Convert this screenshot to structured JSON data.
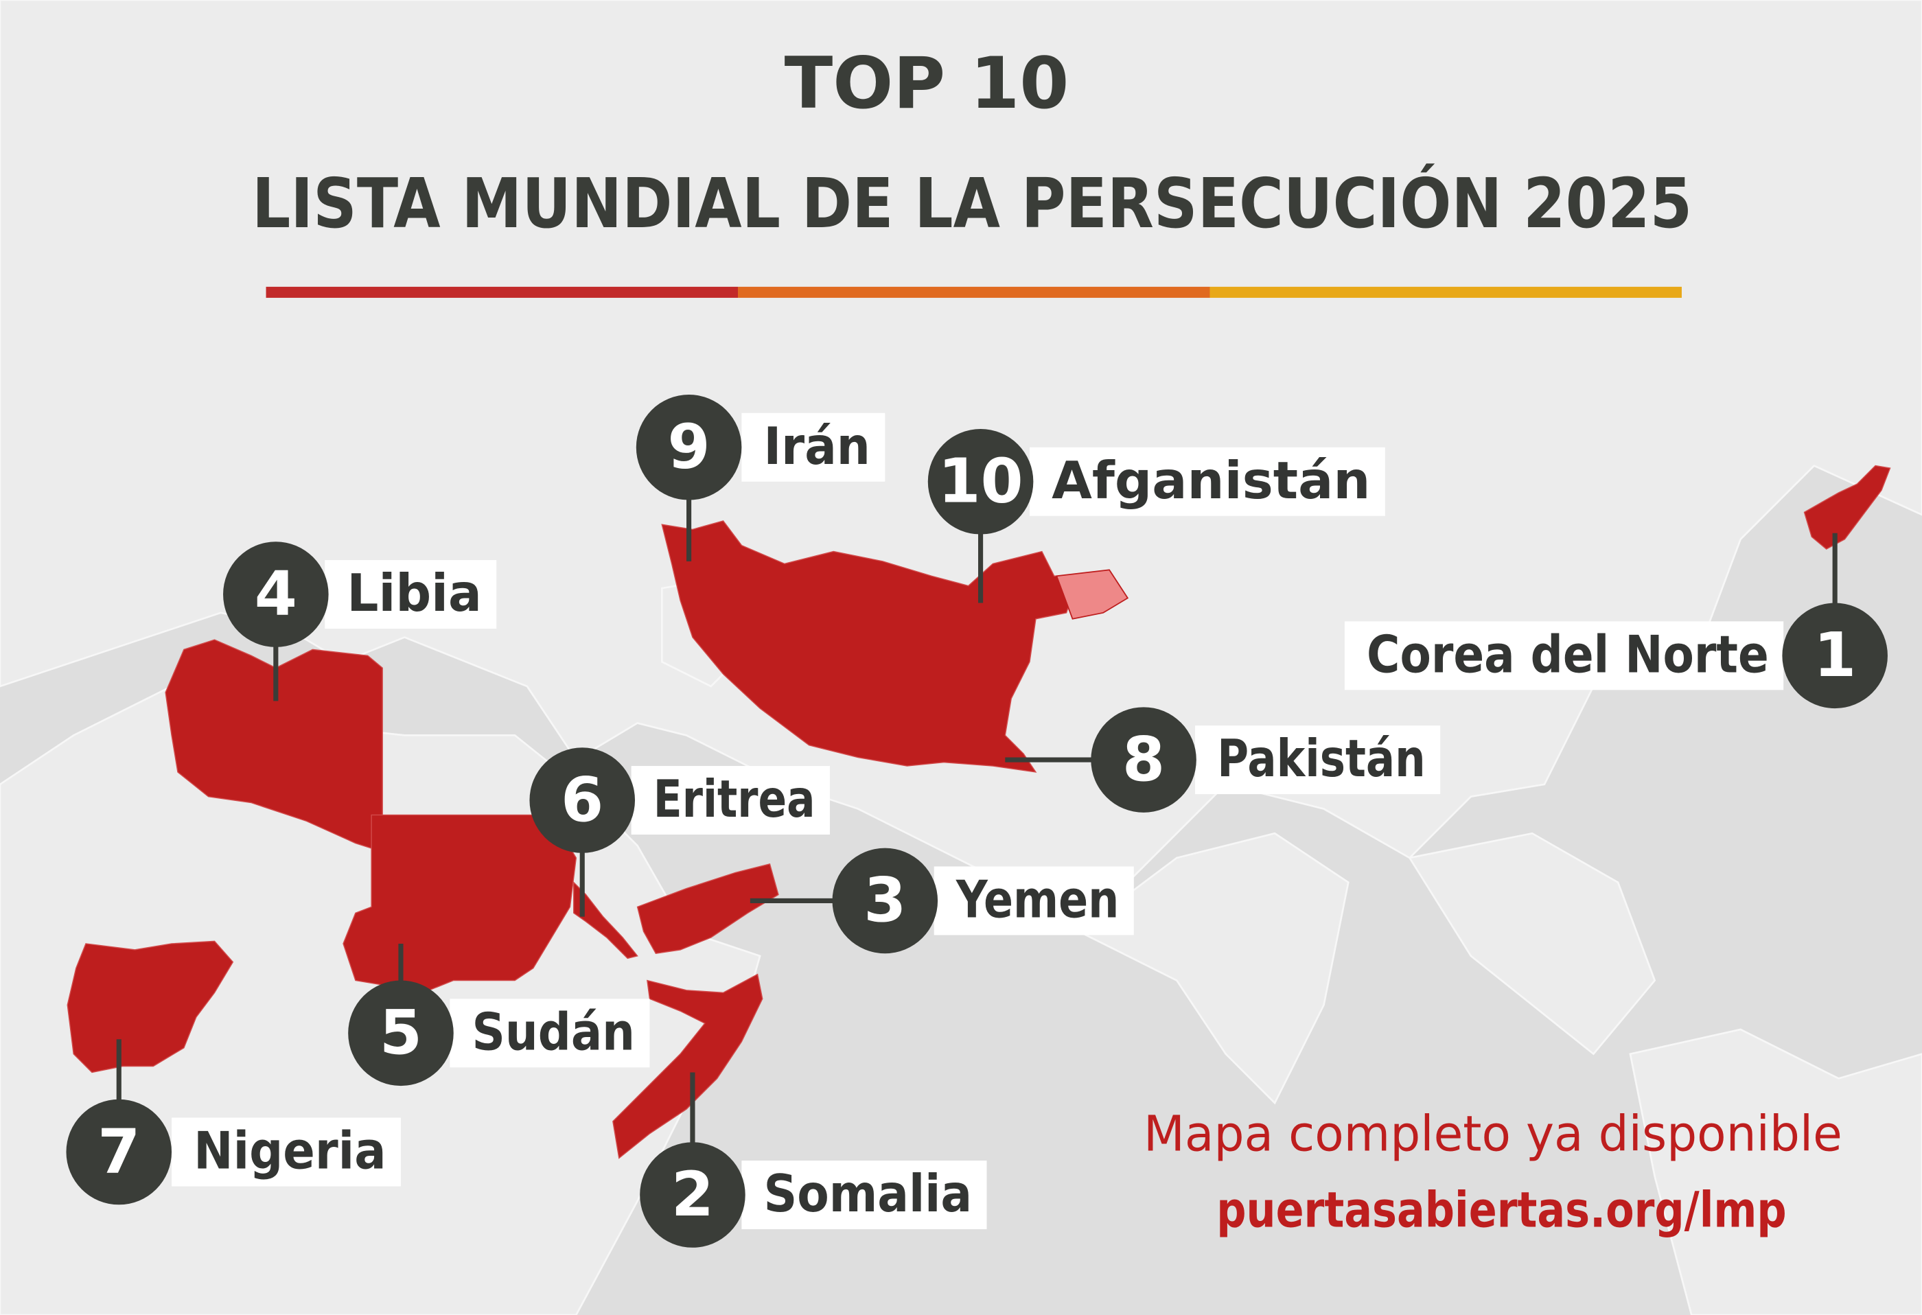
{
  "header": {
    "title": "TOP 10",
    "subtitle": "LISTA MUNDIAL DE LA PERSECUCIÓN 2025"
  },
  "countries": [
    {
      "rank": 1,
      "name": "Corea del Norte"
    },
    {
      "rank": 2,
      "name": "Somalia"
    },
    {
      "rank": 3,
      "name": "Yemen"
    },
    {
      "rank": 4,
      "name": "Libia"
    },
    {
      "rank": 5,
      "name": "Sudán"
    },
    {
      "rank": 6,
      "name": "Eritrea"
    },
    {
      "rank": 7,
      "name": "Nigeria"
    },
    {
      "rank": 8,
      "name": "Pakistán"
    },
    {
      "rank": 9,
      "name": "Irán"
    },
    {
      "rank": 10,
      "name": "Afganistán"
    }
  ],
  "footer": {
    "text": "Mapa completo ya disponible",
    "link": "puertasabiertas.org/lmp"
  }
}
